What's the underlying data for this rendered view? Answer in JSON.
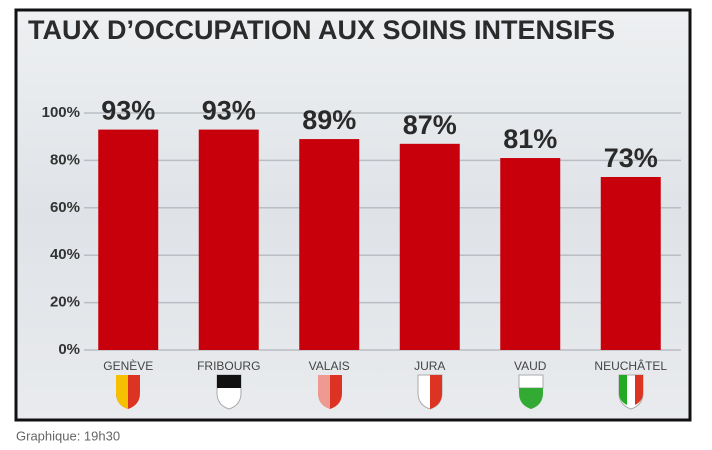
{
  "chart_data": {
    "type": "bar",
    "title": "TAUX D’OCCUPATION AUX SOINS INTENSIFS",
    "categories": [
      "GENÈVE",
      "FRIBOURG",
      "VALAIS",
      "JURA",
      "VAUD",
      "NEUCHÂTEL"
    ],
    "values": [
      93,
      93,
      89,
      87,
      81,
      73
    ],
    "value_labels": [
      "93%",
      "93%",
      "89%",
      "87%",
      "81%",
      "73%"
    ],
    "color": "#c8000b",
    "ylim": [
      0,
      100
    ],
    "yticks": [
      {
        "value": 0,
        "label": "0%"
      },
      {
        "value": 20,
        "label": "20%"
      },
      {
        "value": 40,
        "label": "40%"
      },
      {
        "value": 60,
        "label": "60%"
      },
      {
        "value": 80,
        "label": "80%"
      },
      {
        "value": 100,
        "label": "100%"
      }
    ],
    "grid": true,
    "source": "Graphique: 19h30"
  }
}
